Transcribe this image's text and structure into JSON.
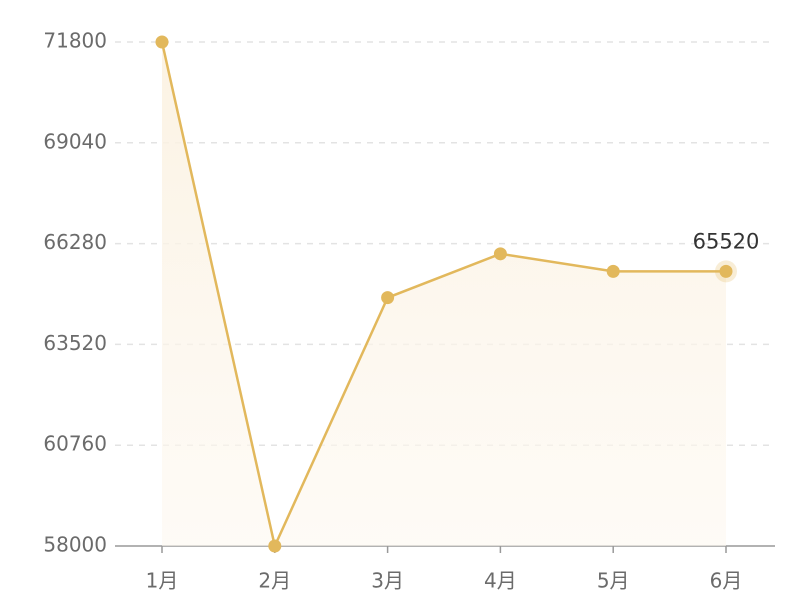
{
  "chart_data": {
    "type": "line",
    "categories": [
      "1月",
      "2月",
      "3月",
      "4月",
      "5月",
      "6月"
    ],
    "series": [
      {
        "color": "#e2b85c",
        "values": [
          71800,
          58000,
          64800,
          66000,
          65520,
          65520
        ]
      }
    ],
    "ylim": [
      58000,
      71800
    ],
    "yticks": [
      58000,
      60760,
      63520,
      66280,
      69040,
      71800
    ],
    "grid": true
  }
}
